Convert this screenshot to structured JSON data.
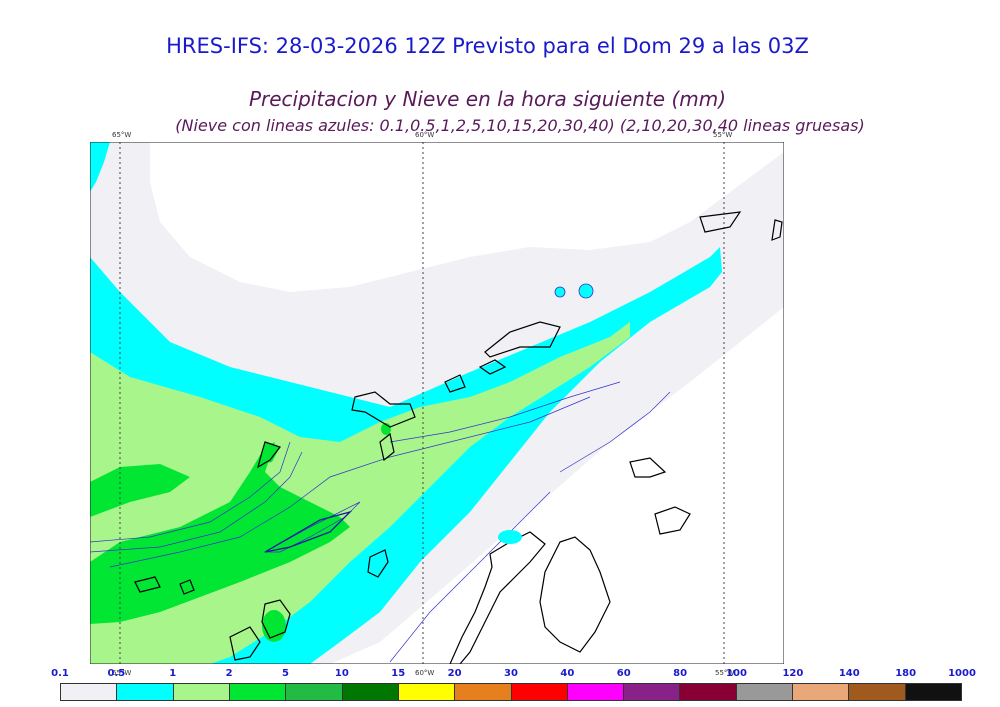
{
  "header": {
    "title": "HRES-IFS: 28-03-2026 12Z Previsto para el Dom 29 a las 03Z",
    "subtitle": "Precipitacion y Nieve en la hora siguiente (mm)",
    "note": "(Nieve con lineas azules: 0.1,0.5,1,2,5,10,15,20,30,40)  (2,10,20,30,40 lineas gruesas)"
  },
  "map": {
    "meridian_labels": [
      "65°W",
      "60°W",
      "55°W"
    ],
    "colors": {
      "level_0_1": "#f0f0f5",
      "level_0_5": "#00ffff",
      "level_1": "#a8f58c",
      "level_2": "#00e632",
      "coast": "#000000",
      "snow_lines": "#3333cc"
    }
  },
  "colorbar": {
    "ticks": [
      "0.1",
      "0.5",
      "1",
      "2",
      "5",
      "10",
      "15",
      "20",
      "30",
      "40",
      "60",
      "80",
      "100",
      "120",
      "140",
      "180",
      "1000"
    ],
    "colors": [
      "#f0f0f5",
      "#00ffff",
      "#a8f58c",
      "#00e632",
      "#22bb44",
      "#007700",
      "#ffff00",
      "#e6801e",
      "#ff0000",
      "#ff00ff",
      "#882288",
      "#880033",
      "#999999",
      "#e8a878",
      "#a05a1e",
      "#111111"
    ]
  }
}
